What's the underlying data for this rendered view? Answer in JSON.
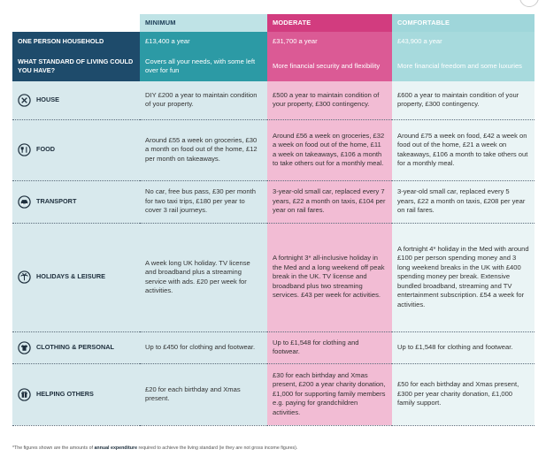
{
  "tiers": {
    "minimum": "MINIMUM",
    "moderate": "MODERATE",
    "comfortable": "COMFORTABLE"
  },
  "household": {
    "label": "ONE PERSON HOUSEHOLD",
    "minimum": "£13,400 a year",
    "moderate": "£31,700 a year",
    "comfortable": "£43,900 a year"
  },
  "standard": {
    "label": "WHAT STANDARD OF LIVING COULD YOU HAVE?",
    "minimum": "Covers all your needs, with some left over for fun",
    "moderate": "More financial security and flexibility",
    "comfortable": "More financial freedom and some luxuries"
  },
  "categories": [
    {
      "icon": "house-icon",
      "label": "HOUSE",
      "minimum": "DIY £200 a year to maintain condition of your property.",
      "moderate": "£500 a year to maintain condition of your property, £300 contingency.",
      "comfortable": "£600 a year to maintain condition of your property, £300 contingency."
    },
    {
      "icon": "food-icon",
      "label": "FOOD",
      "minimum": "Around £55 a week on groceries, £30 a month on food out of the home, £12 per month on takeaways.",
      "moderate": "Around £56 a week on groceries, £32 a week on food out of the home, £11 a week on takeaways, £106 a month to take others out for a monthly meal.",
      "comfortable": "Around £75 a week on food, £42 a week on food out of the home, £21 a week on takeaways, £106 a month to take others out for a monthly meal."
    },
    {
      "icon": "car-icon",
      "label": "TRANSPORT",
      "minimum": "No car, free bus pass, £30 per month for two taxi trips, £180 per year to cover 3 rail journeys.",
      "moderate": "3-year-old small car, replaced every 7 years, £22 a month on taxis, £104 per year on rail fares.",
      "comfortable": "3-year-old small car, replaced every 5 years, £22 a month on taxis, £208 per year on rail fares."
    },
    {
      "icon": "palm-tree-icon",
      "label": "HOLIDAYS & LEISURE",
      "minimum": "A week long UK holiday. TV license and broadband plus a streaming service with ads. £20 per week for activities.",
      "moderate": "A fortnight 3* all-inclusive holiday in the Med and a long weekend off peak break in the UK. TV license and broadband plus two streaming services. £43 per week for activities.",
      "comfortable": "A fortnight 4* holiday in the Med with around £100 per person spending money and 3 long weekend breaks in the UK with £400 spending money per break. Extensive bundled broadband, streaming and TV entertainment subscription. £54 a week for activities."
    },
    {
      "icon": "shirt-icon",
      "label": "CLOTHING & PERSONAL",
      "minimum": "Up to £450 for clothing and footwear.",
      "moderate": "Up to £1,548 for clothing and footwear.",
      "comfortable": "Up to £1,548 for clothing and footwear."
    },
    {
      "icon": "gift-icon",
      "label": "HELPING OTHERS",
      "minimum": "£20 for each birthday and Xmas present.",
      "moderate": "£30 for each birthday and Xmas present, £200 a year charity donation, £1,000 for supporting family members e.g. paying for grandchildren activities.",
      "comfortable": "£50 for each birthday and Xmas present, £300 per year charity donation, £1,000 family support."
    }
  ],
  "footnote": {
    "before": "*The figures shown are the amounts of ",
    "bold": "annual expenditure",
    "after": " required to achieve the living standard (ie they are not gross income figures)."
  },
  "colors": {
    "navy": "#1e4b6b",
    "teal": "#2c9aa5",
    "pink": "#d23c7f",
    "light_teal": "#9fd6da"
  }
}
